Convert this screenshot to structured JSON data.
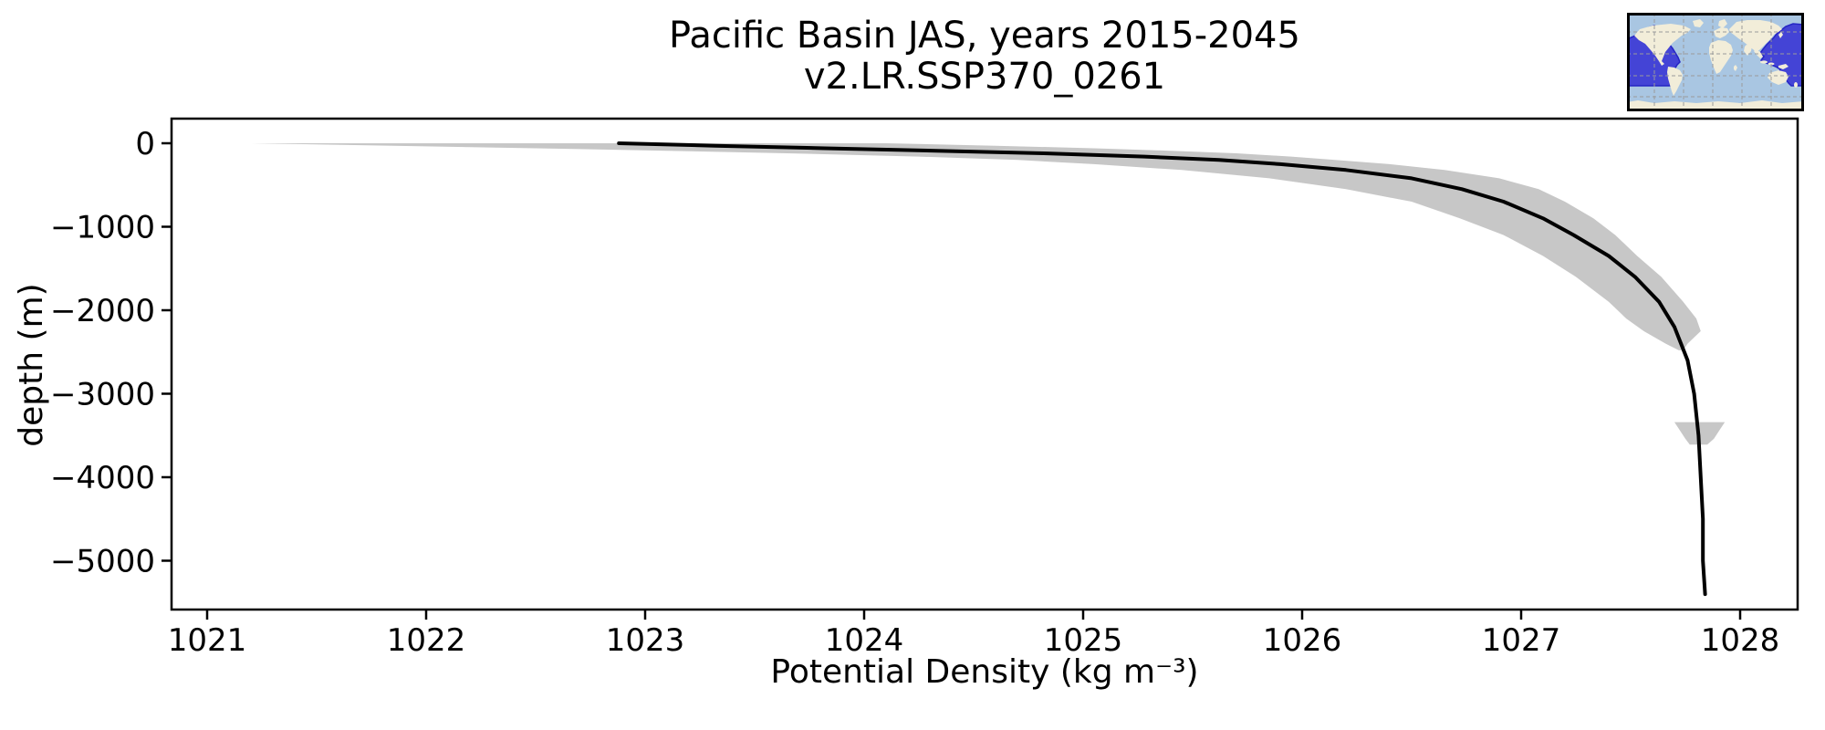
{
  "figure": {
    "background": "#ffffff"
  },
  "chart_data": {
    "type": "line",
    "title": "Pacific Basin JAS, years 2015-2045",
    "subtitle": "v2.LR.SSP370_0261",
    "xlabel": "Potential Density (kg m⁻³)",
    "ylabel": "depth (m)",
    "xlim": [
      1020.8375,
      1028.2625
    ],
    "ylim": [
      -5585,
      295
    ],
    "xticks": [
      1021,
      1022,
      1023,
      1024,
      1025,
      1026,
      1027,
      1028
    ],
    "yticks": [
      0,
      -1000,
      -2000,
      -3000,
      -4000,
      -5000
    ],
    "grid": false,
    "legend": "none",
    "line_color": "#000000",
    "line_width": 4,
    "band_color": "#c7c7c7",
    "frame_color": "#000000",
    "series": [
      {
        "name": "mean potential density profile",
        "depths": [
          0,
          -30,
          -60,
          -90,
          -120,
          -160,
          -200,
          -250,
          -320,
          -420,
          -550,
          -700,
          -900,
          -1100,
          -1350,
          -1600,
          -1900,
          -2200,
          -2600,
          -3000,
          -3500,
          -4000,
          -4500,
          -5000,
          -5400
        ],
        "values": [
          1022.88,
          1023.32,
          1023.82,
          1024.33,
          1024.82,
          1025.28,
          1025.62,
          1025.9,
          1026.2,
          1026.5,
          1026.73,
          1026.92,
          1027.1,
          1027.24,
          1027.4,
          1027.52,
          1027.63,
          1027.7,
          1027.76,
          1027.79,
          1027.81,
          1027.82,
          1027.83,
          1027.83,
          1027.84
        ]
      }
    ],
    "std_band": {
      "name": "plus-minus one standard deviation",
      "depths": [
        0,
        -30,
        -60,
        -90,
        -120,
        -160,
        -200,
        -250,
        -320,
        -420,
        -550,
        -700,
        -900,
        -1100,
        -1350,
        -1600,
        -1900,
        -2100,
        -2250,
        -2400,
        -2480
      ],
      "lo": [
        1021.2,
        1021.85,
        1022.5,
        1023.1,
        1023.65,
        1024.25,
        1024.7,
        1025.05,
        1025.45,
        1025.85,
        1026.2,
        1026.5,
        1026.72,
        1026.92,
        1027.1,
        1027.25,
        1027.4,
        1027.48,
        1027.56,
        1027.66,
        1027.72
      ],
      "hi": [
        1024.1,
        1024.6,
        1025.05,
        1025.4,
        1025.7,
        1025.95,
        1026.15,
        1026.4,
        1026.65,
        1026.9,
        1027.08,
        1027.2,
        1027.33,
        1027.43,
        1027.53,
        1027.64,
        1027.74,
        1027.8,
        1027.82,
        1027.76,
        1027.74
      ]
    },
    "deep_band_patch": {
      "name": "deep std patch",
      "depths": [
        -3340,
        -3420,
        -3540,
        -3610
      ],
      "lo": [
        1027.7,
        1027.72,
        1027.75,
        1027.77
      ],
      "hi": [
        1027.93,
        1027.91,
        1027.88,
        1027.85
      ]
    }
  },
  "inset_map": {
    "name": "Pacific basin location map",
    "ocean_color": "#a9c6e2",
    "land_color": "#f2edd9",
    "highlight_color": "#4444d6",
    "highlight_edge_color": "#2525c4",
    "grid_color": "#9a9a9a",
    "frame_color": "#000000"
  }
}
